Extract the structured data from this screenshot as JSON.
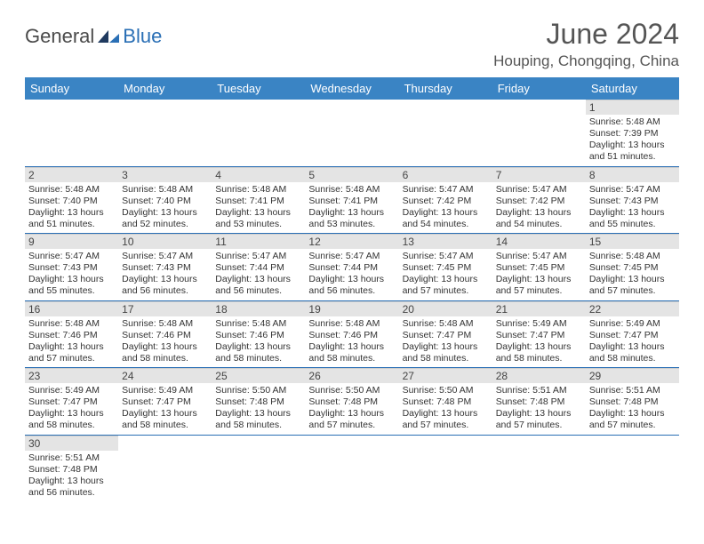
{
  "logo": {
    "part1": "General",
    "part2": "Blue"
  },
  "title": "June 2024",
  "location": "Houping, Chongqing, China",
  "colors": {
    "header_bg": "#3a84c4",
    "header_text": "#ffffff",
    "row_divider": "#2a6fb5",
    "daynum_bg": "#e4e4e4",
    "logo_blue": "#2a6fb5",
    "logo_gray": "#4a4a4a"
  },
  "daynames": [
    "Sunday",
    "Monday",
    "Tuesday",
    "Wednesday",
    "Thursday",
    "Friday",
    "Saturday"
  ],
  "weeks": [
    [
      null,
      null,
      null,
      null,
      null,
      null,
      {
        "n": "1",
        "sr": "5:48 AM",
        "ss": "7:39 PM",
        "dl": "13 hours and 51 minutes."
      }
    ],
    [
      {
        "n": "2",
        "sr": "5:48 AM",
        "ss": "7:40 PM",
        "dl": "13 hours and 51 minutes."
      },
      {
        "n": "3",
        "sr": "5:48 AM",
        "ss": "7:40 PM",
        "dl": "13 hours and 52 minutes."
      },
      {
        "n": "4",
        "sr": "5:48 AM",
        "ss": "7:41 PM",
        "dl": "13 hours and 53 minutes."
      },
      {
        "n": "5",
        "sr": "5:48 AM",
        "ss": "7:41 PM",
        "dl": "13 hours and 53 minutes."
      },
      {
        "n": "6",
        "sr": "5:47 AM",
        "ss": "7:42 PM",
        "dl": "13 hours and 54 minutes."
      },
      {
        "n": "7",
        "sr": "5:47 AM",
        "ss": "7:42 PM",
        "dl": "13 hours and 54 minutes."
      },
      {
        "n": "8",
        "sr": "5:47 AM",
        "ss": "7:43 PM",
        "dl": "13 hours and 55 minutes."
      }
    ],
    [
      {
        "n": "9",
        "sr": "5:47 AM",
        "ss": "7:43 PM",
        "dl": "13 hours and 55 minutes."
      },
      {
        "n": "10",
        "sr": "5:47 AM",
        "ss": "7:43 PM",
        "dl": "13 hours and 56 minutes."
      },
      {
        "n": "11",
        "sr": "5:47 AM",
        "ss": "7:44 PM",
        "dl": "13 hours and 56 minutes."
      },
      {
        "n": "12",
        "sr": "5:47 AM",
        "ss": "7:44 PM",
        "dl": "13 hours and 56 minutes."
      },
      {
        "n": "13",
        "sr": "5:47 AM",
        "ss": "7:45 PM",
        "dl": "13 hours and 57 minutes."
      },
      {
        "n": "14",
        "sr": "5:47 AM",
        "ss": "7:45 PM",
        "dl": "13 hours and 57 minutes."
      },
      {
        "n": "15",
        "sr": "5:48 AM",
        "ss": "7:45 PM",
        "dl": "13 hours and 57 minutes."
      }
    ],
    [
      {
        "n": "16",
        "sr": "5:48 AM",
        "ss": "7:46 PM",
        "dl": "13 hours and 57 minutes."
      },
      {
        "n": "17",
        "sr": "5:48 AM",
        "ss": "7:46 PM",
        "dl": "13 hours and 58 minutes."
      },
      {
        "n": "18",
        "sr": "5:48 AM",
        "ss": "7:46 PM",
        "dl": "13 hours and 58 minutes."
      },
      {
        "n": "19",
        "sr": "5:48 AM",
        "ss": "7:46 PM",
        "dl": "13 hours and 58 minutes."
      },
      {
        "n": "20",
        "sr": "5:48 AM",
        "ss": "7:47 PM",
        "dl": "13 hours and 58 minutes."
      },
      {
        "n": "21",
        "sr": "5:49 AM",
        "ss": "7:47 PM",
        "dl": "13 hours and 58 minutes."
      },
      {
        "n": "22",
        "sr": "5:49 AM",
        "ss": "7:47 PM",
        "dl": "13 hours and 58 minutes."
      }
    ],
    [
      {
        "n": "23",
        "sr": "5:49 AM",
        "ss": "7:47 PM",
        "dl": "13 hours and 58 minutes."
      },
      {
        "n": "24",
        "sr": "5:49 AM",
        "ss": "7:47 PM",
        "dl": "13 hours and 58 minutes."
      },
      {
        "n": "25",
        "sr": "5:50 AM",
        "ss": "7:48 PM",
        "dl": "13 hours and 58 minutes."
      },
      {
        "n": "26",
        "sr": "5:50 AM",
        "ss": "7:48 PM",
        "dl": "13 hours and 57 minutes."
      },
      {
        "n": "27",
        "sr": "5:50 AM",
        "ss": "7:48 PM",
        "dl": "13 hours and 57 minutes."
      },
      {
        "n": "28",
        "sr": "5:51 AM",
        "ss": "7:48 PM",
        "dl": "13 hours and 57 minutes."
      },
      {
        "n": "29",
        "sr": "5:51 AM",
        "ss": "7:48 PM",
        "dl": "13 hours and 57 minutes."
      }
    ],
    [
      {
        "n": "30",
        "sr": "5:51 AM",
        "ss": "7:48 PM",
        "dl": "13 hours and 56 minutes."
      },
      null,
      null,
      null,
      null,
      null,
      null
    ]
  ],
  "labels": {
    "sunrise": "Sunrise: ",
    "sunset": "Sunset: ",
    "daylight": "Daylight: "
  }
}
